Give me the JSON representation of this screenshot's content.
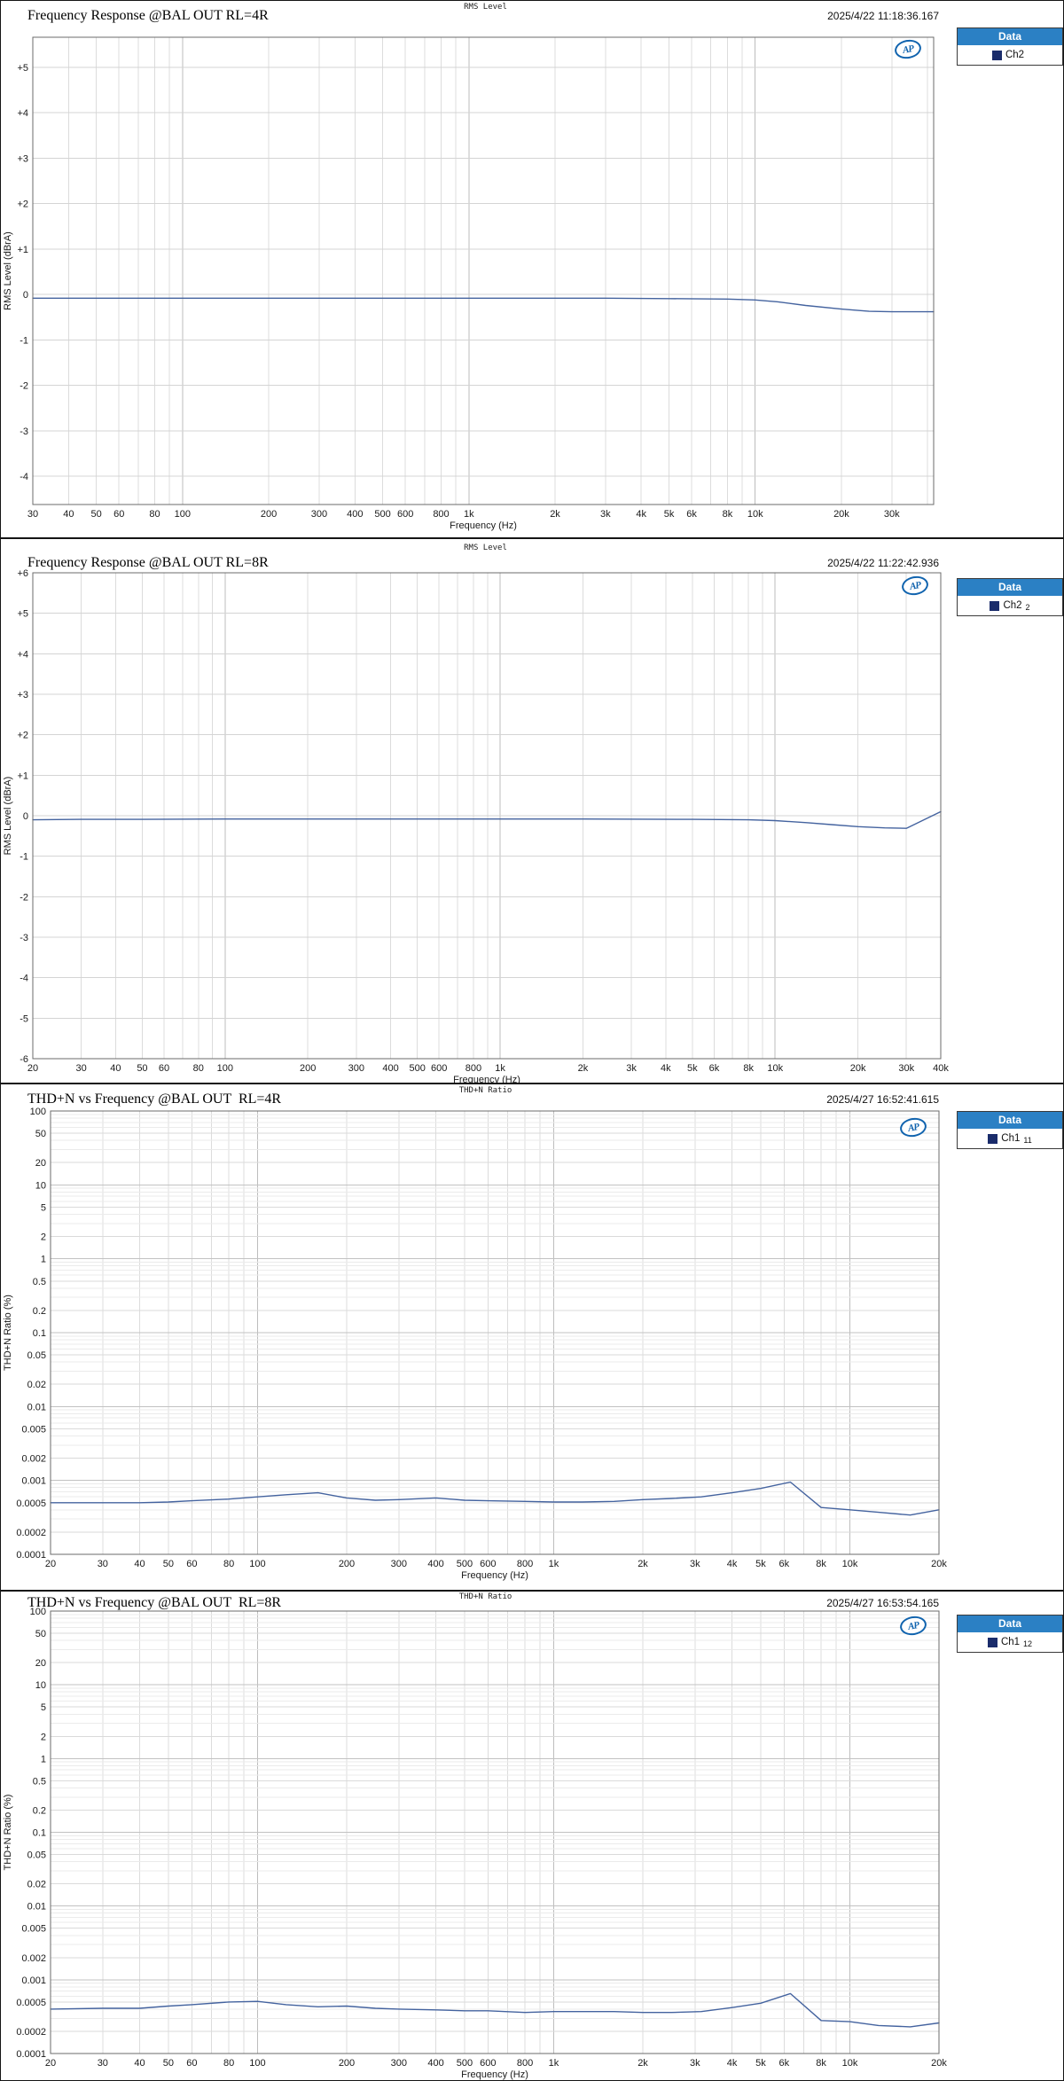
{
  "branding": {
    "ap_logo": "AP"
  },
  "colors": {
    "curve": "#44639f",
    "legend_header_bg": "#2b80c4",
    "legend_swatch": "#1a2c6b",
    "ap_blue": "#1063ae",
    "grid_major": "#bdbdbd",
    "grid_minor": "#dcdcdc",
    "plot_border": "#6b6b6b"
  },
  "chart_data": [
    {
      "type": "line",
      "window_label": "RMS Level",
      "title": "Frequency Response @BAL OUT RL=4R",
      "timestamp": "2025/4/22 11:18:36.167",
      "xlabel": "Frequency (Hz)",
      "ylabel": "RMS Level (dBrA)",
      "x_scale": "log",
      "y_scale": "linear",
      "xlim": [
        30,
        42000
      ],
      "ylim": [
        -4.62,
        5.66
      ],
      "x_ticks": [
        [
          30,
          "30"
        ],
        [
          40,
          "40"
        ],
        [
          50,
          "50"
        ],
        [
          60,
          "60"
        ],
        [
          80,
          "80"
        ],
        [
          100,
          "100"
        ],
        [
          200,
          "200"
        ],
        [
          300,
          "300"
        ],
        [
          400,
          "400"
        ],
        [
          500,
          "500"
        ],
        [
          600,
          "600"
        ],
        [
          800,
          "800"
        ],
        [
          1000,
          "1k"
        ],
        [
          2000,
          "2k"
        ],
        [
          3000,
          "3k"
        ],
        [
          4000,
          "4k"
        ],
        [
          5000,
          "5k"
        ],
        [
          6000,
          "6k"
        ],
        [
          8000,
          "8k"
        ],
        [
          10000,
          "10k"
        ],
        [
          20000,
          "20k"
        ],
        [
          30000,
          "30k"
        ]
      ],
      "y_ticks": [
        [
          5,
          "+5"
        ],
        [
          4,
          "+4"
        ],
        [
          3,
          "+3"
        ],
        [
          2,
          "+2"
        ],
        [
          1,
          "+1"
        ],
        [
          0,
          "0"
        ],
        [
          -1,
          "-1"
        ],
        [
          -2,
          "-2"
        ],
        [
          -3,
          "-3"
        ],
        [
          -4,
          "-4"
        ]
      ],
      "legend": {
        "header": "Data",
        "entries": [
          {
            "label": "Ch2",
            "index": ""
          }
        ]
      },
      "series": [
        {
          "name": "Ch2",
          "points": [
            [
              30,
              -0.08
            ],
            [
              40,
              -0.08
            ],
            [
              60,
              -0.08
            ],
            [
              100,
              -0.08
            ],
            [
              200,
              -0.08
            ],
            [
              400,
              -0.08
            ],
            [
              800,
              -0.08
            ],
            [
              1000,
              -0.08
            ],
            [
              2000,
              -0.08
            ],
            [
              3000,
              -0.08
            ],
            [
              5000,
              -0.09
            ],
            [
              8000,
              -0.1
            ],
            [
              10000,
              -0.12
            ],
            [
              12000,
              -0.16
            ],
            [
              15000,
              -0.24
            ],
            [
              20000,
              -0.32
            ],
            [
              25000,
              -0.37
            ],
            [
              30000,
              -0.38
            ],
            [
              35000,
              -0.38
            ],
            [
              42000,
              -0.38
            ]
          ]
        }
      ]
    },
    {
      "type": "line",
      "window_label": "RMS Level",
      "title": "Frequency Response @BAL OUT RL=8R",
      "timestamp": "2025/4/22 11:22:42.936",
      "xlabel": "Frequency (Hz)",
      "ylabel": "RMS Level (dBrA)",
      "x_scale": "log",
      "y_scale": "linear",
      "xlim": [
        20,
        40000
      ],
      "ylim": [
        -6,
        6
      ],
      "x_ticks": [
        [
          20,
          "20"
        ],
        [
          30,
          "30"
        ],
        [
          40,
          "40"
        ],
        [
          50,
          "50"
        ],
        [
          60,
          "60"
        ],
        [
          80,
          "80"
        ],
        [
          100,
          "100"
        ],
        [
          200,
          "200"
        ],
        [
          300,
          "300"
        ],
        [
          400,
          "400"
        ],
        [
          500,
          "500"
        ],
        [
          600,
          "600"
        ],
        [
          800,
          "800"
        ],
        [
          1000,
          "1k"
        ],
        [
          2000,
          "2k"
        ],
        [
          3000,
          "3k"
        ],
        [
          4000,
          "4k"
        ],
        [
          5000,
          "5k"
        ],
        [
          6000,
          "6k"
        ],
        [
          8000,
          "8k"
        ],
        [
          10000,
          "10k"
        ],
        [
          20000,
          "20k"
        ],
        [
          30000,
          "30k"
        ],
        [
          40000,
          "40k"
        ]
      ],
      "y_ticks": [
        [
          6,
          "+6"
        ],
        [
          5,
          "+5"
        ],
        [
          4,
          "+4"
        ],
        [
          3,
          "+3"
        ],
        [
          2,
          "+2"
        ],
        [
          1,
          "+1"
        ],
        [
          0,
          "0"
        ],
        [
          -1,
          "-1"
        ],
        [
          -2,
          "-2"
        ],
        [
          -3,
          "-3"
        ],
        [
          -4,
          "-4"
        ],
        [
          -5,
          "-5"
        ],
        [
          -6,
          "-6"
        ]
      ],
      "legend": {
        "header": "Data",
        "entries": [
          {
            "label": "Ch2",
            "index": "2"
          }
        ]
      },
      "series": [
        {
          "name": "Ch2 2",
          "points": [
            [
              20,
              -0.1
            ],
            [
              30,
              -0.09
            ],
            [
              50,
              -0.09
            ],
            [
              100,
              -0.08
            ],
            [
              200,
              -0.08
            ],
            [
              500,
              -0.08
            ],
            [
              1000,
              -0.08
            ],
            [
              2000,
              -0.08
            ],
            [
              5000,
              -0.09
            ],
            [
              8000,
              -0.1
            ],
            [
              10000,
              -0.12
            ],
            [
              13000,
              -0.17
            ],
            [
              16000,
              -0.22
            ],
            [
              20000,
              -0.27
            ],
            [
              25000,
              -0.3
            ],
            [
              30000,
              -0.31
            ],
            [
              40000,
              0.1
            ]
          ]
        }
      ]
    },
    {
      "type": "line",
      "window_label": "THD+N Ratio",
      "title": "THD+N vs Frequency @BAL OUT  RL=4R",
      "timestamp": "2025/4/27 16:52:41.615",
      "xlabel": "Frequency (Hz)",
      "ylabel": "THD+N Ratio (%)",
      "x_scale": "log",
      "y_scale": "log",
      "xlim": [
        20,
        20000
      ],
      "ylim": [
        0.0001,
        100
      ],
      "x_ticks": [
        [
          20,
          "20"
        ],
        [
          30,
          "30"
        ],
        [
          40,
          "40"
        ],
        [
          50,
          "50"
        ],
        [
          60,
          "60"
        ],
        [
          80,
          "80"
        ],
        [
          100,
          "100"
        ],
        [
          200,
          "200"
        ],
        [
          300,
          "300"
        ],
        [
          400,
          "400"
        ],
        [
          500,
          "500"
        ],
        [
          600,
          "600"
        ],
        [
          800,
          "800"
        ],
        [
          1000,
          "1k"
        ],
        [
          2000,
          "2k"
        ],
        [
          3000,
          "3k"
        ],
        [
          4000,
          "4k"
        ],
        [
          5000,
          "5k"
        ],
        [
          6000,
          "6k"
        ],
        [
          8000,
          "8k"
        ],
        [
          10000,
          "10k"
        ],
        [
          20000,
          "20k"
        ]
      ],
      "y_ticks": [
        [
          100,
          "100"
        ],
        [
          50,
          "50"
        ],
        [
          20,
          "20"
        ],
        [
          10,
          "10"
        ],
        [
          5,
          "5"
        ],
        [
          2,
          "2"
        ],
        [
          1,
          "1"
        ],
        [
          0.5,
          "0.5"
        ],
        [
          0.2,
          "0.2"
        ],
        [
          0.1,
          "0.1"
        ],
        [
          0.05,
          "0.05"
        ],
        [
          0.02,
          "0.02"
        ],
        [
          0.01,
          "0.01"
        ],
        [
          0.005,
          "0.005"
        ],
        [
          0.002,
          "0.002"
        ],
        [
          0.001,
          "0.001"
        ],
        [
          0.0005,
          "0.0005"
        ],
        [
          0.0002,
          "0.0002"
        ],
        [
          0.0001,
          "0.0001"
        ]
      ],
      "legend": {
        "header": "Data",
        "entries": [
          {
            "label": "Ch1",
            "index": "11"
          }
        ]
      },
      "series": [
        {
          "name": "Ch1 11",
          "points": [
            [
              20,
              0.0005
            ],
            [
              30,
              0.0005
            ],
            [
              40,
              0.0005
            ],
            [
              50,
              0.00051
            ],
            [
              60,
              0.00053
            ],
            [
              80,
              0.00056
            ],
            [
              100,
              0.0006
            ],
            [
              125,
              0.00064
            ],
            [
              160,
              0.00068
            ],
            [
              200,
              0.00058
            ],
            [
              250,
              0.00054
            ],
            [
              300,
              0.00055
            ],
            [
              400,
              0.00058
            ],
            [
              500,
              0.00054
            ],
            [
              600,
              0.00053
            ],
            [
              800,
              0.00052
            ],
            [
              1000,
              0.00051
            ],
            [
              1250,
              0.00051
            ],
            [
              1600,
              0.00052
            ],
            [
              2000,
              0.00055
            ],
            [
              2500,
              0.00057
            ],
            [
              3150,
              0.0006
            ],
            [
              4000,
              0.00068
            ],
            [
              5000,
              0.00078
            ],
            [
              6300,
              0.00095
            ],
            [
              8000,
              0.00043
            ],
            [
              10000,
              0.0004
            ],
            [
              12500,
              0.00037
            ],
            [
              16000,
              0.00034
            ],
            [
              20000,
              0.0004
            ]
          ]
        }
      ]
    },
    {
      "type": "line",
      "window_label": "THD+N Ratio",
      "title": "THD+N vs Frequency @BAL OUT  RL=8R",
      "timestamp": "2025/4/27 16:53:54.165",
      "xlabel": "Frequency (Hz)",
      "ylabel": "THD+N Ratio (%)",
      "x_scale": "log",
      "y_scale": "log",
      "xlim": [
        20,
        20000
      ],
      "ylim": [
        0.0001,
        100
      ],
      "x_ticks": [
        [
          20,
          "20"
        ],
        [
          30,
          "30"
        ],
        [
          40,
          "40"
        ],
        [
          50,
          "50"
        ],
        [
          60,
          "60"
        ],
        [
          80,
          "80"
        ],
        [
          100,
          "100"
        ],
        [
          200,
          "200"
        ],
        [
          300,
          "300"
        ],
        [
          400,
          "400"
        ],
        [
          500,
          "500"
        ],
        [
          600,
          "600"
        ],
        [
          800,
          "800"
        ],
        [
          1000,
          "1k"
        ],
        [
          2000,
          "2k"
        ],
        [
          3000,
          "3k"
        ],
        [
          4000,
          "4k"
        ],
        [
          5000,
          "5k"
        ],
        [
          6000,
          "6k"
        ],
        [
          8000,
          "8k"
        ],
        [
          10000,
          "10k"
        ],
        [
          20000,
          "20k"
        ]
      ],
      "y_ticks": [
        [
          100,
          "100"
        ],
        [
          50,
          "50"
        ],
        [
          20,
          "20"
        ],
        [
          10,
          "10"
        ],
        [
          5,
          "5"
        ],
        [
          2,
          "2"
        ],
        [
          1,
          "1"
        ],
        [
          0.5,
          "0.5"
        ],
        [
          0.2,
          "0.2"
        ],
        [
          0.1,
          "0.1"
        ],
        [
          0.05,
          "0.05"
        ],
        [
          0.02,
          "0.02"
        ],
        [
          0.01,
          "0.01"
        ],
        [
          0.005,
          "0.005"
        ],
        [
          0.002,
          "0.002"
        ],
        [
          0.001,
          "0.001"
        ],
        [
          0.0005,
          "0.0005"
        ],
        [
          0.0002,
          "0.0002"
        ],
        [
          0.0001,
          "0.0001"
        ]
      ],
      "legend": {
        "header": "Data",
        "entries": [
          {
            "label": "Ch1",
            "index": "12"
          }
        ]
      },
      "series": [
        {
          "name": "Ch1 12",
          "points": [
            [
              20,
              0.0004
            ],
            [
              30,
              0.00041
            ],
            [
              40,
              0.00041
            ],
            [
              50,
              0.00044
            ],
            [
              60,
              0.00046
            ],
            [
              80,
              0.0005
            ],
            [
              100,
              0.00051
            ],
            [
              125,
              0.00046
            ],
            [
              160,
              0.00043
            ],
            [
              200,
              0.00044
            ],
            [
              250,
              0.00041
            ],
            [
              300,
              0.0004
            ],
            [
              400,
              0.00039
            ],
            [
              500,
              0.00038
            ],
            [
              600,
              0.00038
            ],
            [
              800,
              0.00036
            ],
            [
              1000,
              0.00037
            ],
            [
              1250,
              0.00037
            ],
            [
              1600,
              0.00037
            ],
            [
              2000,
              0.00036
            ],
            [
              2500,
              0.00036
            ],
            [
              3150,
              0.00037
            ],
            [
              4000,
              0.00042
            ],
            [
              5000,
              0.00048
            ],
            [
              6300,
              0.00065
            ],
            [
              8000,
              0.00028
            ],
            [
              10000,
              0.00027
            ],
            [
              12500,
              0.00024
            ],
            [
              16000,
              0.00023
            ],
            [
              20000,
              0.00026
            ]
          ]
        }
      ]
    }
  ]
}
